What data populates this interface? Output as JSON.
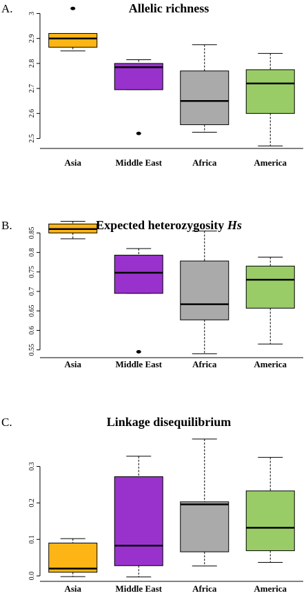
{
  "chart_data": [
    {
      "type": "box",
      "panel_label": "A.",
      "title": "Allelic richness",
      "categories": [
        "Asia",
        "Middle East",
        "Africa",
        "America"
      ],
      "colors": [
        "#fdb515",
        "#9932cc",
        "#aaaaaa",
        "#99cc66"
      ],
      "whisker_low": [
        2.85,
        2.695,
        2.525,
        2.47
      ],
      "q1": [
        2.865,
        2.695,
        2.555,
        2.6
      ],
      "median": [
        2.9,
        2.785,
        2.65,
        2.72
      ],
      "q3": [
        2.92,
        2.8,
        2.77,
        2.775
      ],
      "whisker_high": [
        2.92,
        2.815,
        2.875,
        2.84
      ],
      "outliers": [
        [
          3.02
        ],
        [
          2.52
        ],
        [],
        []
      ],
      "ylim": [
        2.46,
        3.04
      ],
      "yticks": [
        2.5,
        2.6,
        2.7,
        2.8,
        2.9,
        3.0
      ]
    },
    {
      "type": "box",
      "panel_label": "B.",
      "title": "Expected heterozygosity",
      "title_emphasis": "Hs",
      "categories": [
        "Asia",
        "Middle East",
        "Africa",
        "America"
      ],
      "colors": [
        "#fdb515",
        "#9932cc",
        "#aaaaaa",
        "#99cc66"
      ],
      "whisker_low": [
        0.835,
        0.695,
        0.54,
        0.565
      ],
      "q1": [
        0.85,
        0.695,
        0.627,
        0.657
      ],
      "median": [
        0.86,
        0.748,
        0.667,
        0.73
      ],
      "q3": [
        0.873,
        0.793,
        0.778,
        0.765
      ],
      "whisker_high": [
        0.88,
        0.81,
        0.855,
        0.788
      ],
      "outliers": [
        [],
        [
          0.545
        ],
        [],
        []
      ],
      "ylim": [
        0.53,
        0.895
      ],
      "yticks": [
        0.55,
        0.6,
        0.65,
        0.7,
        0.75,
        0.8,
        0.85
      ]
    },
    {
      "type": "box",
      "panel_label": "C.",
      "title": "Linkage disequilibrium",
      "categories": [
        "Asia",
        "Middle East",
        "Africa",
        "America"
      ],
      "colors": [
        "#fdb515",
        "#9932cc",
        "#aaaaaa",
        "#99cc66"
      ],
      "whisker_low": [
        -0.002,
        -0.003,
        0.027,
        0.037
      ],
      "q1": [
        0.01,
        0.028,
        0.066,
        0.069
      ],
      "median": [
        0.02,
        0.083,
        0.196,
        0.132
      ],
      "q3": [
        0.09,
        0.272,
        0.203,
        0.233
      ],
      "whisker_high": [
        0.102,
        0.328,
        0.375,
        0.325
      ],
      "outliers": [
        [],
        [],
        [],
        []
      ],
      "ylim": [
        -0.015,
        0.39
      ],
      "yticks": [
        {
          "value": 0,
          "label": "0.0"
        },
        0.1,
        0.2,
        0.3
      ]
    }
  ]
}
